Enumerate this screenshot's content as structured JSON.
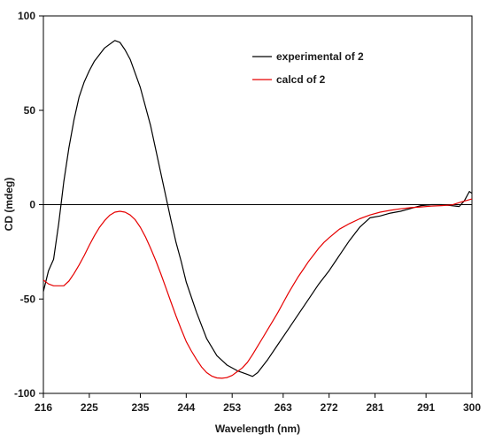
{
  "chart_data": {
    "type": "line",
    "title": "",
    "xlabel": "Wavelength (nm)",
    "ylabel": "CD (mdeg)",
    "xlim": [
      216,
      300
    ],
    "ylim": [
      -100,
      100
    ],
    "x_ticks": [
      "216",
      "225",
      "235",
      "244",
      "253",
      "263",
      "272",
      "281",
      "291",
      "300"
    ],
    "y_ticks": [
      "100",
      "50",
      "0",
      "-50",
      "-100"
    ],
    "zero_line": true,
    "grid": false,
    "legend_position": "top-right",
    "series": [
      {
        "name": "experimental of 2",
        "color": "#000000",
        "x": [
          216,
          217,
          218,
          219,
          220,
          221,
          222,
          223,
          224,
          225,
          226,
          228,
          230,
          231,
          232,
          233,
          235,
          237,
          239,
          241,
          242,
          243,
          244,
          246,
          248,
          250,
          252,
          254,
          256,
          257,
          258,
          260,
          262,
          264,
          266,
          268,
          270,
          272,
          274,
          276,
          278,
          280,
          282,
          284,
          286,
          288,
          290,
          292,
          294,
          296,
          297.5,
          298.5,
          299.5,
          300
        ],
        "y": [
          -46,
          -35,
          -29,
          -10,
          12,
          30,
          45,
          57,
          65,
          71,
          76,
          83,
          87,
          86,
          82,
          77,
          62,
          42,
          17,
          -8,
          -20,
          -30,
          -41,
          -57,
          -71,
          -80,
          -85,
          -88,
          -90,
          -91,
          -89,
          -82,
          -74,
          -66,
          -58,
          -50,
          -42,
          -35,
          -27,
          -19,
          -12,
          -7,
          -6,
          -4.5,
          -3.5,
          -2,
          -0.5,
          0,
          0,
          -0.5,
          -1,
          2,
          7,
          6
        ]
      },
      {
        "name": "calcd of 2",
        "color": "#e60000",
        "x": [
          216,
          217,
          218,
          219,
          220,
          221,
          222,
          223,
          224,
          225,
          226,
          227,
          228,
          229,
          230,
          231,
          232,
          233,
          234,
          235,
          236,
          237,
          238,
          239,
          240,
          241,
          242,
          243,
          244,
          245,
          246,
          247,
          248,
          249,
          250,
          251,
          252,
          253,
          254,
          255,
          256,
          257,
          258,
          259,
          260,
          261,
          262,
          263,
          264,
          265,
          266,
          267,
          268,
          269,
          270,
          271,
          272,
          274,
          276,
          278,
          280,
          282,
          284,
          286,
          288,
          290,
          292,
          294,
          296,
          298,
          300
        ],
        "y": [
          -40,
          -42,
          -43,
          -43,
          -43,
          -40.5,
          -36.5,
          -32,
          -27,
          -21.5,
          -16.5,
          -12,
          -8.5,
          -5.6,
          -4,
          -3.5,
          -4,
          -5.5,
          -8,
          -12,
          -17,
          -23,
          -29.5,
          -36.5,
          -44,
          -51.5,
          -59,
          -66,
          -72.5,
          -77.5,
          -82,
          -86,
          -89,
          -90.8,
          -91.8,
          -92,
          -91.6,
          -90.5,
          -88.5,
          -86.5,
          -83.5,
          -79.5,
          -75,
          -70.5,
          -66,
          -61.5,
          -57,
          -52,
          -47,
          -42.5,
          -38,
          -34,
          -30,
          -26.5,
          -23,
          -20,
          -17.5,
          -13,
          -10,
          -7.5,
          -5.5,
          -4,
          -3,
          -2.2,
          -1.6,
          -1.2,
          -0.8,
          -0.5,
          -0.2,
          1.5,
          3
        ]
      }
    ]
  }
}
